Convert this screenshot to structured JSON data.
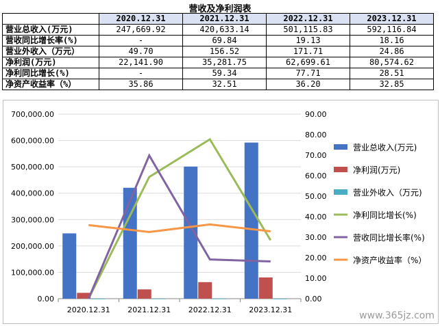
{
  "title": "营收及净利润表",
  "table": {
    "periods": [
      "2020.12.31",
      "2021.12.31",
      "2022.12.31",
      "2023.12.31"
    ],
    "rows": [
      {
        "label": "营业总收入(万元)",
        "values": [
          "247,669.92",
          "420,633.14",
          "501,115.83",
          "592,116.84"
        ]
      },
      {
        "label": "营收同比增长率(%)",
        "values": [
          "-",
          "69.84",
          "19.13",
          "18.16"
        ]
      },
      {
        "label": "营业外收入（万元）",
        "values": [
          "49.70",
          "156.52",
          "171.71",
          "24.86"
        ]
      },
      {
        "label": "净利润(万元)",
        "values": [
          "22,141.90",
          "35,281.75",
          "62,699.61",
          "80,574.62"
        ]
      },
      {
        "label": "净利同比增长(%)",
        "values": [
          "-",
          "59.34",
          "77.71",
          "28.51"
        ]
      },
      {
        "label": "净资产收益率（%）",
        "values": [
          "35.86",
          "32.51",
          "36.20",
          "32.85"
        ]
      }
    ]
  },
  "chart_data": {
    "type": "bar",
    "categories": [
      "2020.12.31",
      "2021.12.31",
      "2022.12.31",
      "2023.12.31"
    ],
    "ylim_left": [
      0,
      700000
    ],
    "yticks_left": [
      "0.00",
      "100,000.00",
      "200,000.00",
      "300,000.00",
      "400,000.00",
      "500,000.00",
      "600,000.00",
      "700,000.00"
    ],
    "ylim_right": [
      0,
      90
    ],
    "yticks_right": [
      "0.00",
      "10.00",
      "20.00",
      "30.00",
      "40.00",
      "50.00",
      "60.00",
      "70.00",
      "80.00",
      "90.00"
    ],
    "grid": true,
    "legend_position": "right",
    "bar_series": [
      {
        "name": "营业总收入(万元)",
        "color": "#4472c4",
        "values": [
          247669.92,
          420633.14,
          501115.83,
          592116.84
        ]
      },
      {
        "name": "净利润(万元)",
        "color": "#c0504d",
        "values": [
          22141.9,
          35281.75,
          62699.61,
          80574.62
        ]
      },
      {
        "name": "营业外收入（万元)",
        "color": "#4bacc6",
        "values": [
          49.7,
          156.52,
          171.71,
          24.86
        ]
      }
    ],
    "line_series": [
      {
        "name": "净利同比增长(%)",
        "color": "#9bbb59",
        "values": [
          0,
          59.34,
          77.71,
          28.51
        ]
      },
      {
        "name": "营收同比增长率(%)",
        "color": "#8064a2",
        "values": [
          0,
          69.84,
          19.13,
          18.16
        ]
      },
      {
        "name": "净资产收益率（%）",
        "color": "#f79646",
        "values": [
          35.86,
          32.51,
          36.2,
          32.85
        ]
      }
    ]
  },
  "watermark": "www.365jz.com"
}
